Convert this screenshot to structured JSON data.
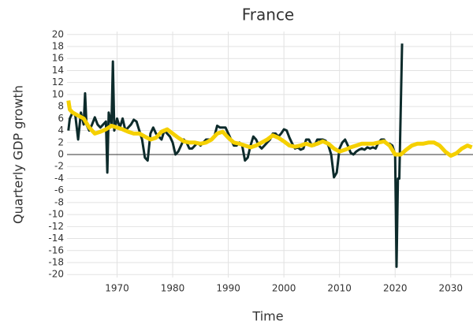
{
  "chart_data": {
    "type": "line",
    "title": "France",
    "x_label": "Time",
    "y_label": "Quarterly GDP growth",
    "xlim": [
      1961,
      2034
    ],
    "ylim": [
      -20.5,
      20.5
    ],
    "xticks": [
      1970,
      1980,
      1990,
      2000,
      2010,
      2020,
      2030
    ],
    "yticks": [
      -20,
      -18,
      -16,
      -14,
      -12,
      -10,
      -8,
      -6,
      -4,
      -2,
      0,
      2,
      4,
      6,
      8,
      10,
      12,
      14,
      16,
      18,
      20
    ],
    "grid": true,
    "series": [
      {
        "color": "#0d2b2b",
        "width": 3,
        "x": [
          1961.25,
          1961.5,
          1962,
          1962.5,
          1963,
          1963.5,
          1964,
          1964.25,
          1964.5,
          1965,
          1965.5,
          1966,
          1966.5,
          1967,
          1967.5,
          1968,
          1968.25,
          1968.5,
          1969,
          1969.25,
          1969.5,
          1970,
          1970.5,
          1971,
          1971.5,
          1972,
          1972.5,
          1973,
          1973.5,
          1974,
          1974.5,
          1975,
          1975.5,
          1976,
          1976.5,
          1977,
          1977.5,
          1978,
          1978.5,
          1979,
          1979.5,
          1980,
          1980.5,
          1981,
          1981.5,
          1982,
          1982.5,
          1983,
          1983.5,
          1984,
          1984.5,
          1985,
          1985.5,
          1986,
          1986.5,
          1987,
          1987.5,
          1988,
          1988.5,
          1989,
          1989.5,
          1990,
          1990.5,
          1991,
          1991.5,
          1992,
          1992.5,
          1993,
          1993.5,
          1994,
          1994.5,
          1995,
          1995.5,
          1996,
          1996.5,
          1997,
          1997.5,
          1998,
          1998.5,
          1999,
          1999.5,
          2000,
          2000.5,
          2001,
          2001.5,
          2002,
          2002.5,
          2003,
          2003.5,
          2004,
          2004.5,
          2005,
          2005.5,
          2006,
          2006.5,
          2007,
          2007.5,
          2008,
          2008.5,
          2009,
          2009.5,
          2010,
          2010.5,
          2011,
          2011.5,
          2012,
          2012.5,
          2013,
          2013.5,
          2014,
          2014.5,
          2015,
          2015.5,
          2016,
          2016.5,
          2017,
          2017.5,
          2018,
          2018.5,
          2019,
          2019.5,
          2020,
          2020.25,
          2020.5,
          2020.75,
          2021.25
        ],
        "values": [
          4,
          6,
          7,
          6.5,
          2.5,
          7,
          5,
          10.2,
          5,
          4,
          5,
          6.2,
          5,
          4.5,
          5,
          5.5,
          -3,
          7,
          5,
          15.5,
          4,
          6,
          4.5,
          6,
          4,
          4.5,
          5,
          5.8,
          5.5,
          4,
          2.5,
          -0.5,
          -1,
          3.5,
          4.5,
          3.5,
          3,
          2.5,
          4,
          3.5,
          3,
          2,
          0,
          0.5,
          1.5,
          2.5,
          2,
          1,
          1,
          1.5,
          2,
          1.5,
          2,
          2.5,
          2.5,
          2.5,
          3,
          4.8,
          4.5,
          4.5,
          4.5,
          3.5,
          2.5,
          1.5,
          1.5,
          2,
          1.5,
          -1,
          -0.5,
          1.5,
          3,
          2.5,
          1.5,
          1,
          1.5,
          2,
          2.5,
          3.5,
          3.5,
          3,
          3.5,
          4.2,
          4,
          2.8,
          1.8,
          1,
          1.2,
          0.8,
          1,
          2.5,
          2.5,
          1.5,
          1.5,
          2.5,
          2.5,
          2.5,
          2.3,
          1.5,
          0,
          -3.8,
          -3,
          1,
          2,
          2.5,
          1.5,
          0.3,
          0,
          0.5,
          0.8,
          1,
          0.8,
          1.2,
          1,
          1.2,
          1,
          2,
          2.5,
          2.5,
          1.8,
          1.8,
          1.5,
          0,
          -18.7,
          -4,
          -4,
          18.5
        ]
      },
      {
        "color": "#f5d000",
        "width": 5,
        "x": [
          1961.25,
          1961.5,
          1962,
          1963,
          1964,
          1965,
          1966,
          1967,
          1968,
          1969,
          1970,
          1971,
          1972,
          1973,
          1974,
          1975,
          1976,
          1977,
          1978,
          1979,
          1980,
          1981,
          1982,
          1983,
          1984,
          1985,
          1986,
          1987,
          1988,
          1989,
          1990,
          1991,
          1992,
          1993,
          1994,
          1995,
          1996,
          1997,
          1998,
          1999,
          2000,
          2001,
          2002,
          2003,
          2004,
          2005,
          2006,
          2007,
          2008,
          2009,
          2010,
          2011,
          2012,
          2013,
          2014,
          2015,
          2016,
          2017,
          2018,
          2019,
          2020,
          2021,
          2022,
          2023,
          2024,
          2025,
          2026,
          2027,
          2028,
          2029,
          2030,
          2031,
          2032,
          2033,
          2033.8
        ],
        "values": [
          9,
          7.5,
          7,
          6.5,
          6,
          4.5,
          3.5,
          3.8,
          4.2,
          4.8,
          4.5,
          4.2,
          3.8,
          3.5,
          3.5,
          3,
          2.5,
          2.8,
          3.8,
          4.2,
          3.5,
          2.8,
          2.2,
          2,
          2,
          1.8,
          2,
          2.5,
          3.5,
          3.8,
          2.8,
          2,
          1.8,
          1.5,
          1.2,
          1.5,
          2,
          2.5,
          3.2,
          2.8,
          2.2,
          1.5,
          1.3,
          1.5,
          1.8,
          1.5,
          1.8,
          2.2,
          1.8,
          1,
          0.5,
          0.8,
          1.2,
          1.5,
          1.8,
          1.8,
          1.8,
          2,
          2.2,
          1.5,
          0,
          0,
          0.8,
          1.5,
          1.8,
          1.8,
          2,
          2,
          1.5,
          0.5,
          -0.2,
          0.2,
          1,
          1.5,
          1.2
        ]
      }
    ]
  }
}
